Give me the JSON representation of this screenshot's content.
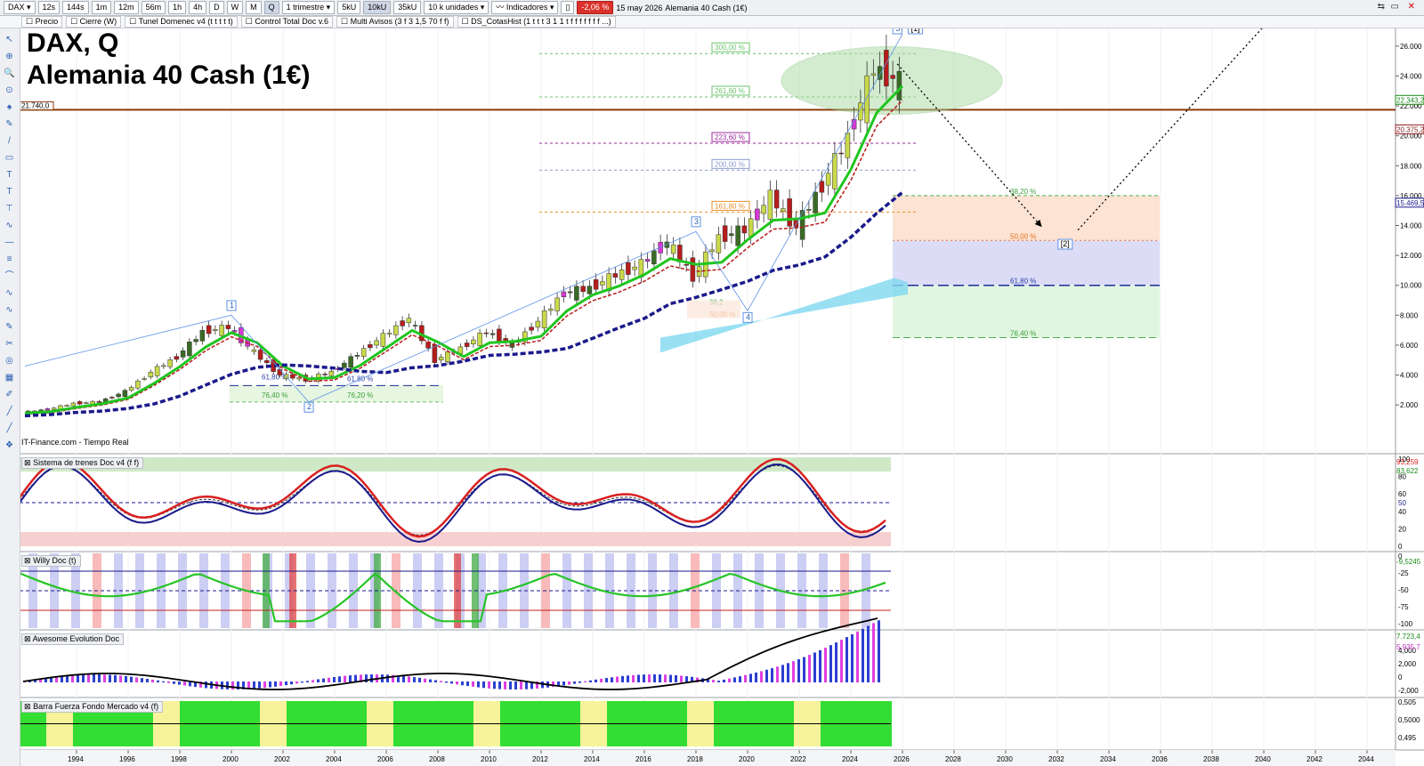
{
  "toolbar": {
    "symbol": "DAX",
    "timeframes": [
      "12s",
      "144s",
      "1m",
      "12m",
      "56m",
      "1h",
      "4h",
      "D",
      "W",
      "M",
      "Q"
    ],
    "period": "1 trimestre",
    "units": [
      "5kU",
      "10kU",
      "35kU"
    ],
    "units_select": "10 k unidades",
    "indicators_label": "Indicadores",
    "change_pct": "-2,06 %",
    "date": "15 may 2026",
    "instrument": "Alemania 40 Cash (1€)"
  },
  "toolbar2": {
    "items": [
      "Precio",
      "Cierre (W)",
      "Tunel Domenec v4 (t t t t t)",
      "Control Total Doc v.6",
      "Multi Avisos (3 f 3 1,5 70 f f)",
      "DS_CotasHist (1 t t t 3 1 1 t f f f f f f f ...)"
    ]
  },
  "header": {
    "title": "DAX, Q",
    "subtitle": "Alemania 40 Cash (1€)"
  },
  "source_label": "IT-Finance.com - Tiempo Real",
  "panels": {
    "p1": "Sistema de trenes Doc v4 (f f)",
    "p2": "Willy Doc (t)",
    "p3": "Awesome Evolution Doc",
    "p4": "Barra Fuerza Fondo Mercado v4 (f)"
  },
  "colors": {
    "bull": "#3a6b25",
    "bear": "#8b1c1c",
    "green_ma": "#1fc51f",
    "blue_ma": "#1a1a8c",
    "resistance": "#8b3a0a",
    "cloud": "#7fd8f0"
  },
  "chart_data": {
    "type": "line",
    "x": [
      "1992",
      "1993",
      "1994",
      "1995",
      "1996",
      "1997",
      "1998",
      "1999",
      "2000",
      "2001",
      "2002",
      "2003",
      "2004",
      "2005",
      "2006",
      "2007",
      "2008",
      "2009",
      "2010",
      "2011",
      "2012",
      "2013",
      "2014",
      "2015",
      "2016",
      "2017",
      "2018",
      "2019",
      "2020",
      "2021",
      "2022",
      "2023",
      "2024",
      "2025",
      "2026"
    ],
    "series": [
      {
        "values": [
          1500,
          1700,
          2100,
          2200,
          2900,
          4200,
          5200,
          6900,
          7200,
          5500,
          4000,
          3700,
          4200,
          5400,
          6600,
          7800,
          5000,
          5800,
          6900,
          6000,
          7600,
          9500,
          9800,
          10700,
          11400,
          12900,
          10600,
          13200,
          13700,
          15900,
          13900,
          16700,
          19900,
          24500,
          23600
        ]
      }
    ],
    "price_axis": [
      "26.000",
      "24.000",
      "22.000",
      "20.000",
      "18.000",
      "16.000",
      "14.000",
      "12.000",
      "10.000",
      "8.000",
      "6.000",
      "4.000",
      "2.000"
    ],
    "price_labels": [
      "22.343,2",
      "20.375,2",
      "15.469,5"
    ],
    "year_axis": [
      "1994",
      "1996",
      "1998",
      "2000",
      "2002",
      "2004",
      "2006",
      "2008",
      "2010",
      "2012",
      "2014",
      "2016",
      "2018",
      "2020",
      "2022",
      "2024",
      "2026",
      "2028",
      "2030",
      "2032",
      "2034",
      "2036",
      "2038",
      "2040",
      "2042",
      "2044"
    ],
    "resistance_level": "21.740,0",
    "fib_upper": [
      "300,00 %",
      "261,80 %",
      "223,60 %",
      "200,00 %",
      "161,80 %"
    ],
    "fib_lower": [
      "38,20 %",
      "50,00 %",
      "61,80 %",
      "76,40 %"
    ],
    "fib_small": [
      "61,80 %",
      "76,40 %",
      "61,80 %",
      "76,20 %",
      "38,2",
      "50,00 %"
    ],
    "wave_labels": [
      "1",
      "2",
      "3",
      "4",
      "5",
      "[1]",
      "[2]"
    ],
    "osc1_axis": [
      "100",
      "80",
      "60",
      "40",
      "20",
      "0"
    ],
    "osc1_values": [
      "93,259",
      "83,622",
      "50"
    ],
    "osc2_axis": [
      "0",
      "-25",
      "-50",
      "-75",
      "-100"
    ],
    "osc2_values": [
      "-9,5245"
    ],
    "osc3_axis": [
      "4,000",
      "2,000",
      "0",
      "-2,000"
    ],
    "osc3_values": [
      "7.723,4",
      "5.935,7"
    ],
    "osc4_axis": [
      "0,505",
      "0,5000",
      "0,495"
    ]
  }
}
